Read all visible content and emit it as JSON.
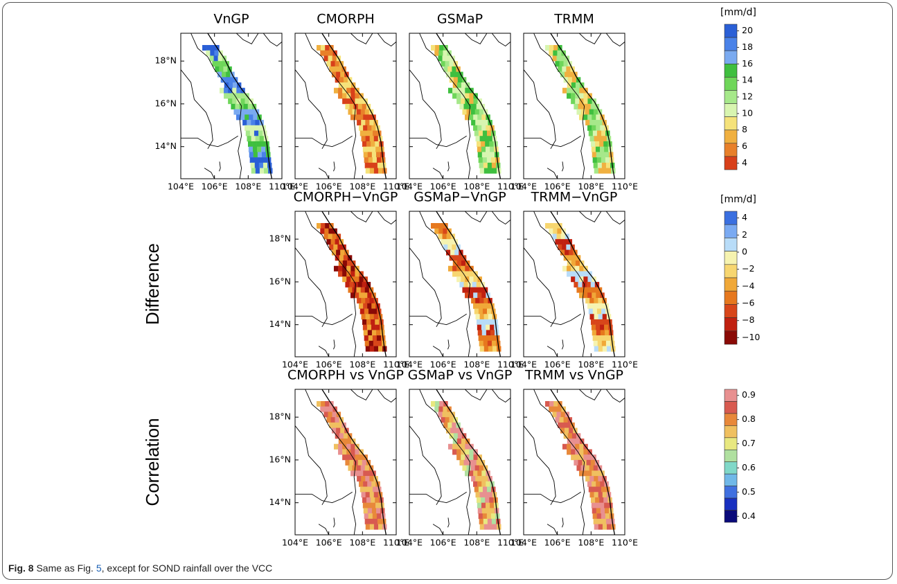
{
  "xlim": [
    104,
    110
  ],
  "ylim": [
    12.5,
    19.3
  ],
  "xticks": [
    {
      "value": 104,
      "label": "104°E"
    },
    {
      "value": 106,
      "label": "106°E"
    },
    {
      "value": 108,
      "label": "108°E"
    },
    {
      "value": 110,
      "label": "110°E"
    }
  ],
  "yticks": [
    {
      "value": 14,
      "label": "14°N"
    },
    {
      "value": 16,
      "label": "16°N"
    },
    {
      "value": 18,
      "label": "18°N"
    }
  ],
  "rows": [
    {
      "panels": [
        "VnGP",
        "CMORPH",
        "GSMaP",
        "TRMM"
      ],
      "colorbar": {
        "unit": "[mm/d]",
        "colors": [
          "#2a5fd6",
          "#4a82e8",
          "#7aaaf0",
          "#3fbf3f",
          "#6fd65a",
          "#a6e88a",
          "#d8f5b0",
          "#f5e27a",
          "#f0b040",
          "#e8802a",
          "#d8401a"
        ],
        "ticks": [
          20,
          18,
          16,
          14,
          12,
          10,
          8,
          6,
          4
        ]
      }
    },
    {
      "label": "Difference",
      "panels": [
        "CMORPH−VnGP",
        "GSMaP−VnGP",
        "TRMM−VnGP"
      ],
      "colorbar": {
        "unit": "[mm/d]",
        "colors": [
          "#3a6fe0",
          "#7aaaf2",
          "#b8dcf8",
          "#f6f3b0",
          "#f7d670",
          "#f0a838",
          "#e6781e",
          "#d8461a",
          "#c02010",
          "#8a0a06"
        ],
        "ticks": [
          4,
          2,
          0,
          {
            "value": -2,
            "label": "−2"
          },
          {
            "value": -4,
            "label": "−4"
          },
          {
            "value": -6,
            "label": "−6"
          },
          {
            "value": -8,
            "label": "−8"
          },
          {
            "value": -10,
            "label": "−10"
          }
        ]
      }
    },
    {
      "label": "Correlation",
      "panels": [
        "CMORPH vs VnGP",
        "GSMaP vs VnGP",
        "TRMM vs VnGP"
      ],
      "colorbar": {
        "colors": [
          "#e89090",
          "#d85a50",
          "#e8883a",
          "#f0c060",
          "#e8e880",
          "#b0e0a0",
          "#80d8c8",
          "#70b8e8",
          "#4070e0",
          "#1830c0",
          "#0a0a7a"
        ],
        "ticks": [
          0.9,
          0.8,
          0.7,
          0.6,
          0.5,
          0.4
        ]
      }
    }
  ],
  "caption": {
    "label": "Fig. 8",
    "text": "Same as Fig. ",
    "link": "5",
    "rest": ", except for SOND rainfall over the VCC"
  }
}
